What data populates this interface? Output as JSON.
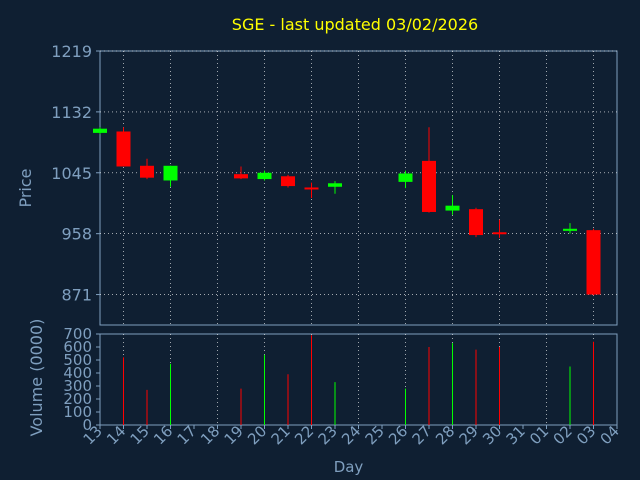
{
  "chart_data": {
    "type": "candlestick",
    "title": "SGE - last updated 03/02/2026",
    "xlabel": "Day",
    "price_axis": {
      "label": "Price",
      "ticks": [
        871,
        958,
        1045,
        1132,
        1219
      ],
      "ylim": [
        827.5,
        1219
      ]
    },
    "volume_axis": {
      "label": "Volume (0000)",
      "ticks": [
        0,
        100,
        200,
        300,
        400,
        500,
        600,
        700
      ],
      "ylim": [
        0,
        700
      ]
    },
    "x_ticks": [
      "13",
      "14",
      "15",
      "16",
      "17",
      "18",
      "19",
      "20",
      "21",
      "22",
      "23",
      "24",
      "25",
      "26",
      "27",
      "28",
      "29",
      "30",
      "31",
      "01",
      "02",
      "03",
      "04"
    ],
    "grid": true,
    "colors": {
      "up": "#00ff00",
      "down": "#ff0000",
      "title": "#ffff00",
      "axis_text": "#7f9fbf",
      "grid": "#ffffff",
      "background": "#0f1f32"
    },
    "candles": [
      {
        "day": "13",
        "open": 1102,
        "high": 1110,
        "low": 1100,
        "close": 1108
      },
      {
        "day": "14",
        "open": 1104,
        "high": 1110,
        "low": 1054,
        "close": 1054
      },
      {
        "day": "15",
        "open": 1055,
        "high": 1065,
        "low": 1036,
        "close": 1038
      },
      {
        "day": "16",
        "open": 1034,
        "high": 1055,
        "low": 1025,
        "close": 1055
      },
      {
        "day": "19",
        "open": 1043,
        "high": 1054,
        "low": 1036,
        "close": 1037
      },
      {
        "day": "20",
        "open": 1036,
        "high": 1048,
        "low": 1034,
        "close": 1045
      },
      {
        "day": "21",
        "open": 1040,
        "high": 1042,
        "low": 1024,
        "close": 1026
      },
      {
        "day": "22",
        "open": 1024,
        "high": 1031,
        "low": 1009,
        "close": 1022
      },
      {
        "day": "23",
        "open": 1025,
        "high": 1033,
        "low": 1015,
        "close": 1030
      },
      {
        "day": "26",
        "open": 1032,
        "high": 1048,
        "low": 1023,
        "close": 1044
      },
      {
        "day": "27",
        "open": 1062,
        "high": 1110,
        "low": 988,
        "close": 989
      },
      {
        "day": "28",
        "open": 991,
        "high": 1013,
        "low": 985,
        "close": 998
      },
      {
        "day": "29",
        "open": 993,
        "high": 995,
        "low": 953,
        "close": 956
      },
      {
        "day": "30",
        "open": 960,
        "high": 978,
        "low": 952,
        "close": 958
      },
      {
        "day": "02",
        "open": 962,
        "high": 973,
        "low": 958,
        "close": 965
      },
      {
        "day": "03",
        "open": 963,
        "high": 965,
        "low": 870,
        "close": 871
      }
    ],
    "volumes": [
      {
        "day": "14",
        "value": 520,
        "dir": "down"
      },
      {
        "day": "15",
        "value": 270,
        "dir": "down"
      },
      {
        "day": "16",
        "value": 470,
        "dir": "up"
      },
      {
        "day": "19",
        "value": 280,
        "dir": "down"
      },
      {
        "day": "20",
        "value": 540,
        "dir": "up"
      },
      {
        "day": "21",
        "value": 390,
        "dir": "down"
      },
      {
        "day": "22",
        "value": 690,
        "dir": "down"
      },
      {
        "day": "23",
        "value": 330,
        "dir": "up"
      },
      {
        "day": "26",
        "value": 280,
        "dir": "up"
      },
      {
        "day": "27",
        "value": 600,
        "dir": "down"
      },
      {
        "day": "28",
        "value": 630,
        "dir": "up"
      },
      {
        "day": "29",
        "value": 580,
        "dir": "down"
      },
      {
        "day": "30",
        "value": 600,
        "dir": "down"
      },
      {
        "day": "02",
        "value": 450,
        "dir": "up"
      },
      {
        "day": "03",
        "value": 640,
        "dir": "down"
      }
    ]
  }
}
